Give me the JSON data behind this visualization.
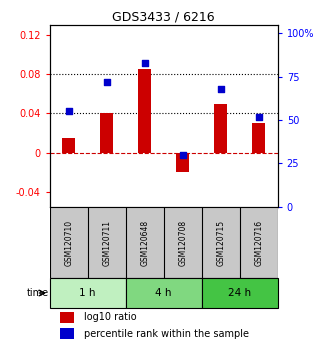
{
  "title": "GDS3433 / 6216",
  "samples": [
    "GSM120710",
    "GSM120711",
    "GSM120648",
    "GSM120708",
    "GSM120715",
    "GSM120716"
  ],
  "log10_ratio": [
    0.015,
    0.04,
    0.085,
    -0.02,
    0.05,
    0.03
  ],
  "percentile": [
    55,
    72,
    83,
    30,
    68,
    52
  ],
  "groups": [
    {
      "label": "1 h",
      "indices": [
        0,
        1
      ],
      "color": "#c0f0c0"
    },
    {
      "label": "4 h",
      "indices": [
        2,
        3
      ],
      "color": "#80d880"
    },
    {
      "label": "24 h",
      "indices": [
        4,
        5
      ],
      "color": "#44c444"
    }
  ],
  "left_ylim": [
    -0.055,
    0.13
  ],
  "right_ylim": [
    0,
    105
  ],
  "left_yticks": [
    -0.04,
    0.0,
    0.04,
    0.08,
    0.12
  ],
  "right_yticks": [
    0,
    25,
    50,
    75,
    100
  ],
  "bar_color": "#cc0000",
  "square_color": "#0000cc",
  "dashed_line_color": "#cc0000",
  "dotted_line_color": "#000000",
  "legend_bar_label": "log10 ratio",
  "legend_sq_label": "percentile rank within the sample",
  "time_label": "time",
  "sample_bg": "#c8c8c8",
  "bar_width": 0.35
}
